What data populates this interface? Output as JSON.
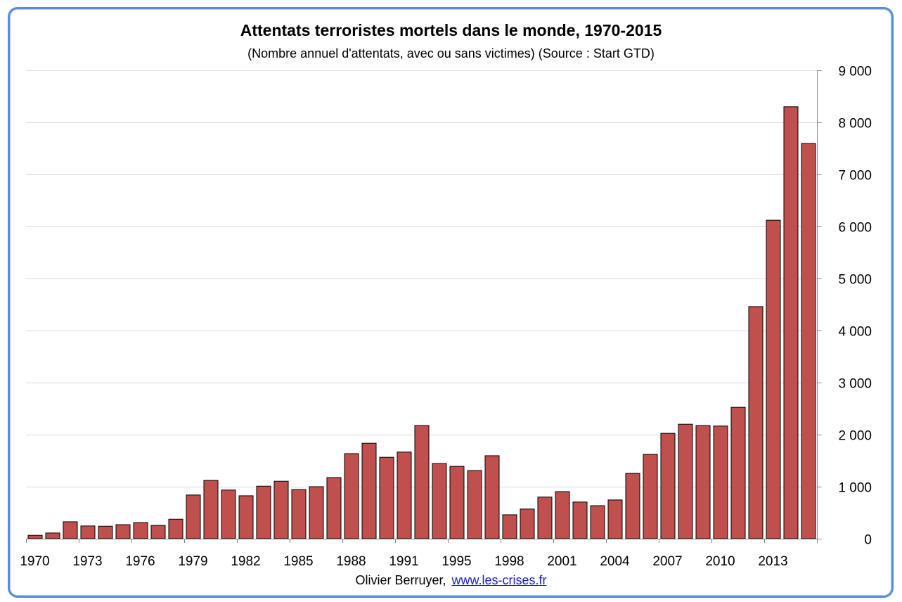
{
  "chart_data": {
    "type": "bar",
    "title": "Attentats terroristes mortels dans le monde, 1970-2015",
    "subtitle": "(Nombre annuel d'attentats, avec ou sans victimes) (Source : Start GTD)",
    "x": [
      1970,
      1971,
      1972,
      1973,
      1974,
      1975,
      1976,
      1977,
      1978,
      1979,
      1980,
      1981,
      1982,
      1983,
      1984,
      1985,
      1986,
      1987,
      1988,
      1989,
      1990,
      1991,
      1992,
      1994,
      1995,
      1996,
      1997,
      1998,
      1999,
      2000,
      2001,
      2002,
      2003,
      2004,
      2005,
      2006,
      2007,
      2008,
      2009,
      2010,
      2011,
      2012,
      2013,
      2014,
      2015
    ],
    "values": [
      65,
      110,
      325,
      245,
      240,
      270,
      310,
      255,
      375,
      840,
      1120,
      935,
      825,
      1010,
      1105,
      945,
      1000,
      1175,
      1635,
      1835,
      1565,
      1665,
      2175,
      1445,
      1390,
      1310,
      1595,
      460,
      570,
      800,
      905,
      705,
      635,
      745,
      1255,
      1620,
      2025,
      2200,
      2175,
      2165,
      2525,
      4460,
      6120,
      8300,
      7595
    ],
    "xtick_labels": [
      "1970",
      "1973",
      "1976",
      "1979",
      "1982",
      "1985",
      "1988",
      "1991",
      "1995",
      "1998",
      "2001",
      "2004",
      "2007",
      "2010",
      "2013"
    ],
    "yticks": [
      0,
      1000,
      2000,
      3000,
      4000,
      5000,
      6000,
      7000,
      8000,
      9000
    ],
    "ytick_labels": [
      "0",
      "1 000",
      "2 000",
      "3 000",
      "4 000",
      "5 000",
      "6 000",
      "7 000",
      "8 000",
      "9 000"
    ],
    "ylim": [
      0,
      9000
    ],
    "y_axis_on_right": true,
    "grid": true,
    "show_legend": false,
    "colors": {
      "bar_fill": "#c0504d",
      "bar_stroke": "#000000",
      "grid": "#d9d9d9",
      "axis": "#868686"
    }
  },
  "footer": {
    "author": "Olivier Berruyer,",
    "link": "www.les-crises.fr"
  },
  "frame": {
    "border_color": "#5b8bd8"
  }
}
